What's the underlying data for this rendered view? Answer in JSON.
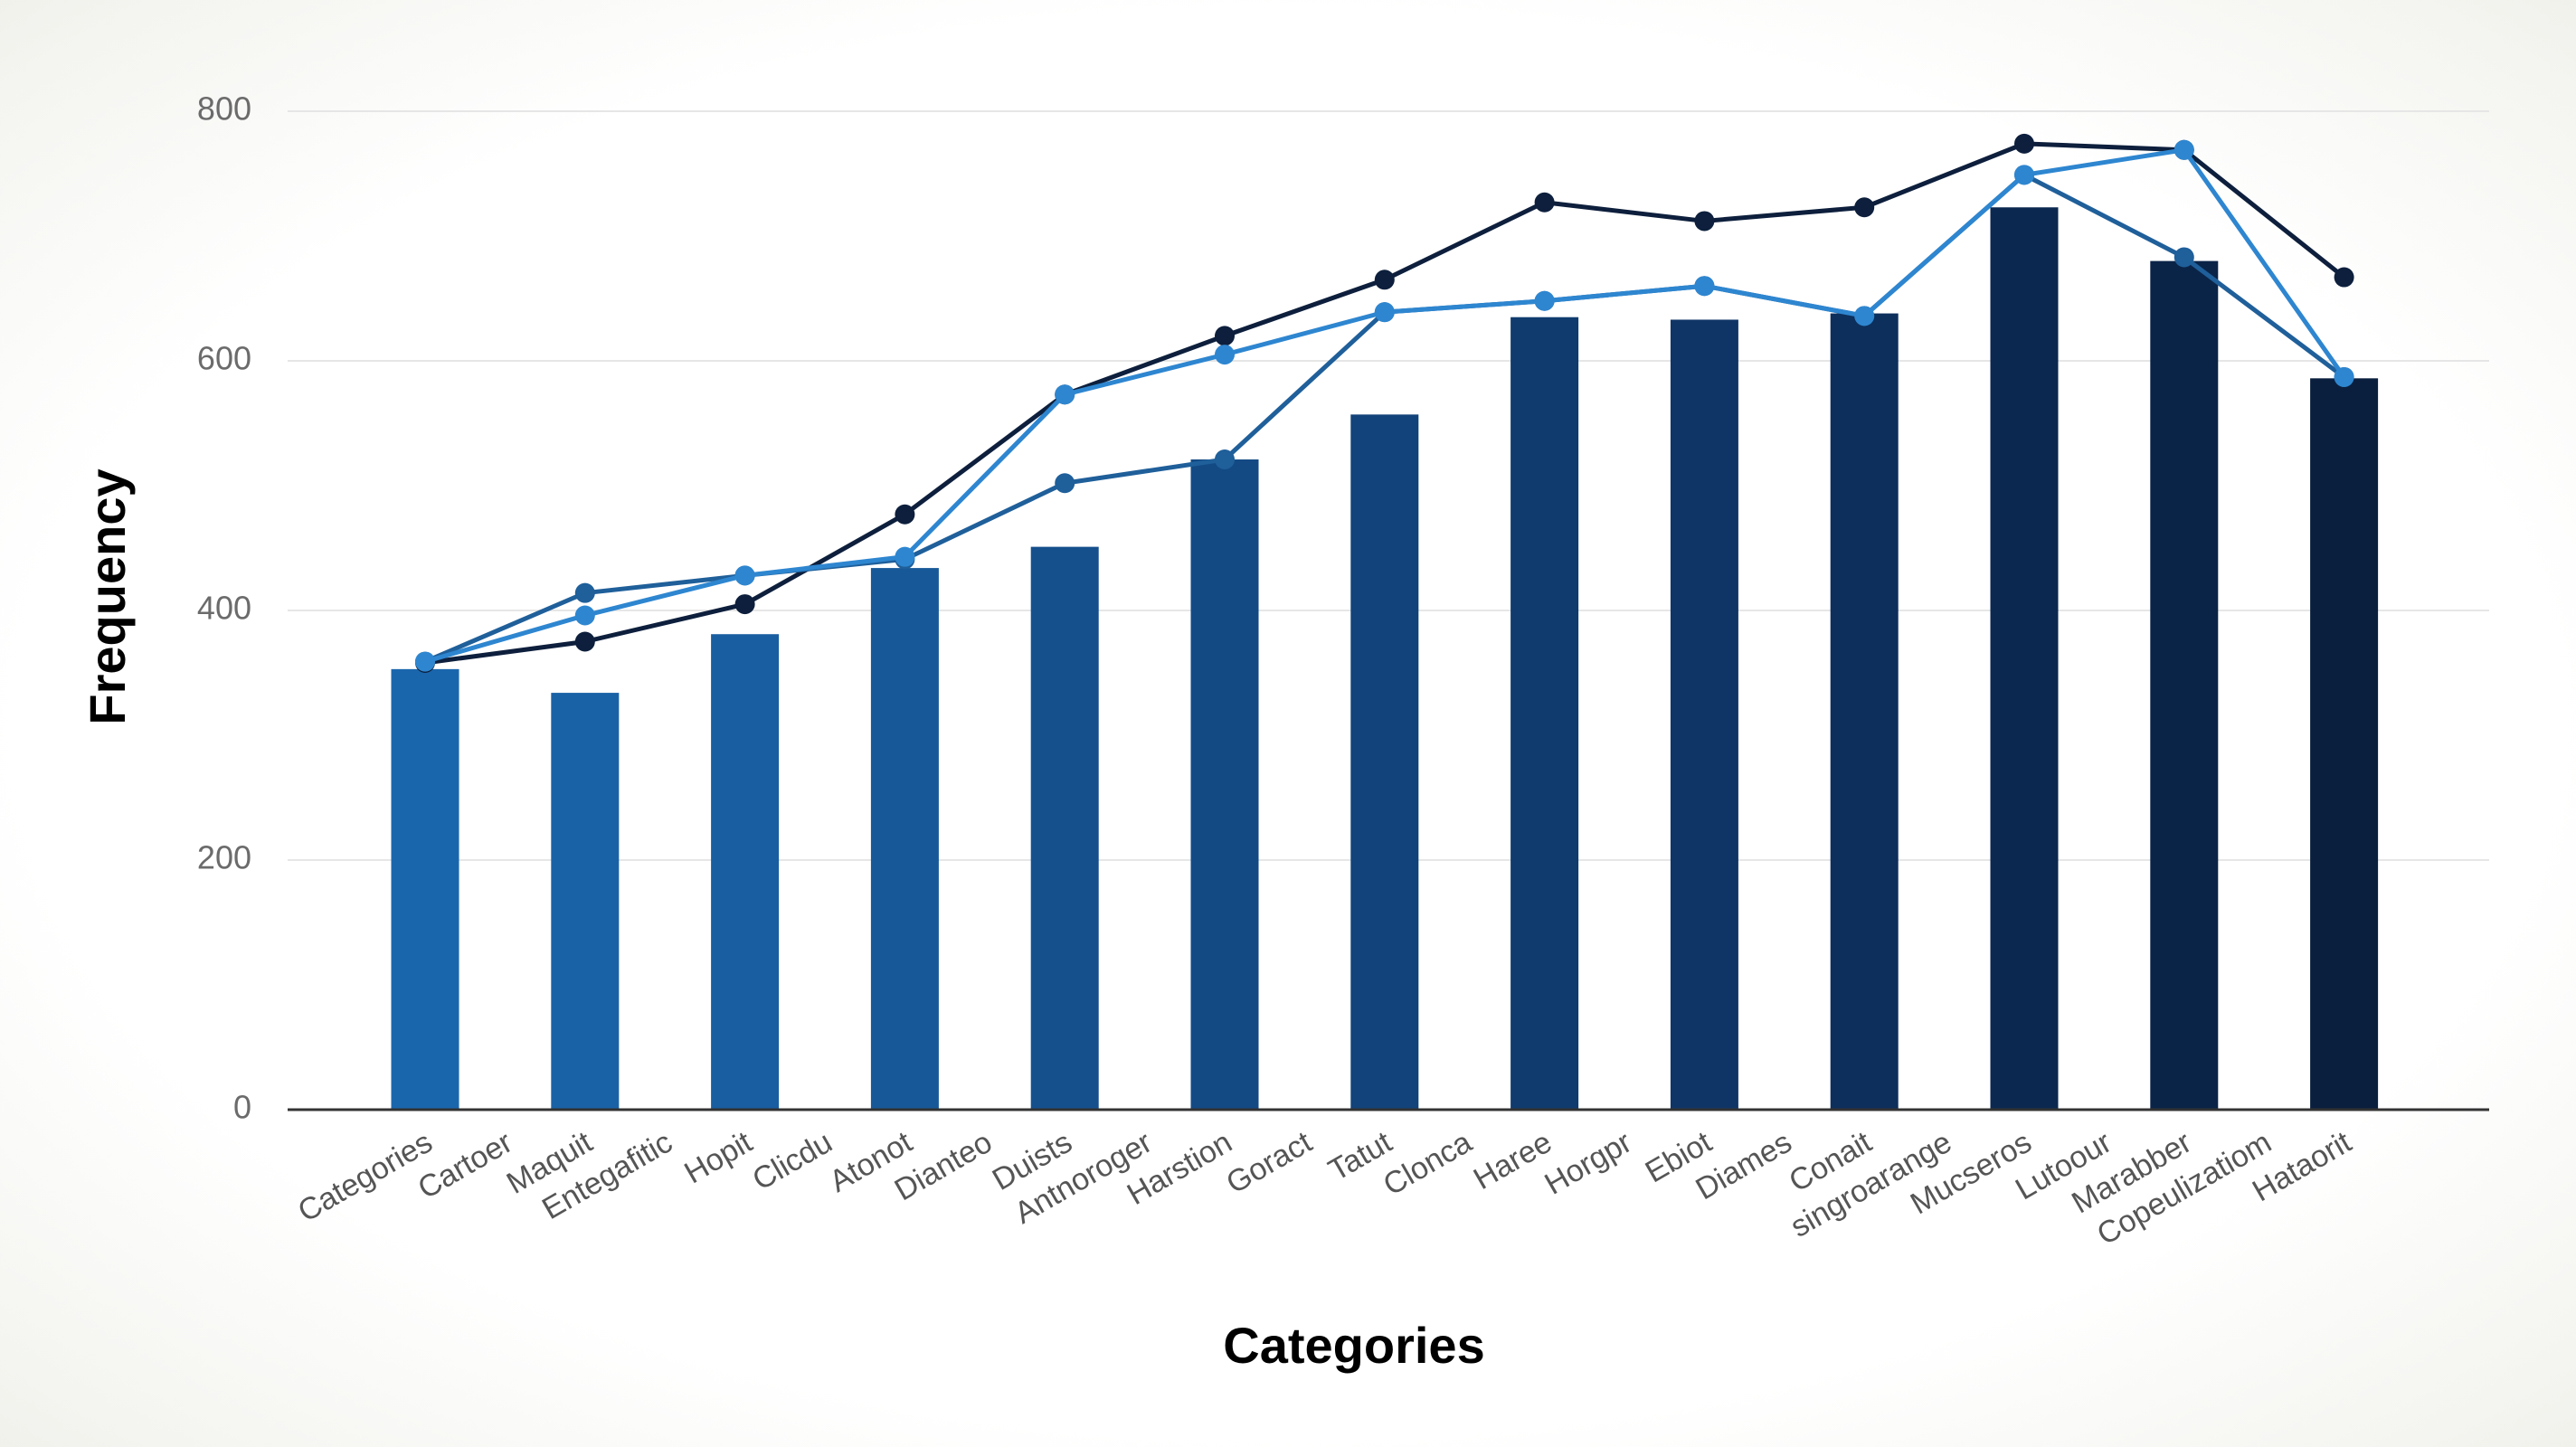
{
  "chart_data": {
    "type": "bar",
    "xlabel": "Categories",
    "ylabel": "Frequency",
    "categories": [
      "Categories",
      "Cartoer",
      "Maquit",
      "Entegafitic",
      "Hopit",
      "Clicdu",
      "Atonot",
      "Dianteo",
      "Duists",
      "Antnoroger",
      "Harstion",
      "Goract",
      "Tatut",
      "Clonca",
      "Haree",
      "Horgpr",
      "Ebiot",
      "Diames",
      "Conait",
      "singroarange",
      "Mucseros",
      "Lutoour",
      "Marabber",
      "Copeulizatiom",
      "Hataorit"
    ],
    "values": [
      353,
      null,
      334,
      null,
      381,
      null,
      434,
      null,
      451,
      null,
      521,
      null,
      557,
      null,
      635,
      null,
      633,
      null,
      638,
      null,
      723,
      null,
      680,
      null,
      586
    ],
    "colors": [
      "#1a66ad",
      null,
      "#1a62a6",
      null,
      "#195ea0",
      null,
      "#175898",
      null,
      "#15508d",
      null,
      "#134a84",
      null,
      "#12437a",
      null,
      "#103b6e",
      null,
      "#0f3566",
      null,
      "#0d2f5c",
      null,
      "#0b2850",
      null,
      "#0a2447",
      null,
      "#0a1f3e"
    ],
    "series": [
      {
        "color": "#0d1f3c",
        "values": [
          358,
          null,
          375,
          null,
          405,
          null,
          477,
          null,
          573,
          null,
          620,
          null,
          665,
          null,
          727,
          null,
          712,
          null,
          723,
          null,
          774,
          null,
          769,
          null,
          667
        ]
      },
      {
        "color": "#1f5f9a",
        "values": [
          359,
          null,
          414,
          null,
          428,
          null,
          441,
          null,
          502,
          null,
          521,
          null,
          639,
          null,
          648,
          null,
          660,
          null,
          636,
          null,
          749,
          null,
          683,
          null,
          587
        ]
      },
      {
        "color": "#2e86d0",
        "values": [
          359,
          null,
          396,
          null,
          428,
          null,
          443,
          null,
          573,
          null,
          605,
          null,
          639,
          null,
          648,
          null,
          660,
          null,
          636,
          null,
          749,
          null,
          769,
          null,
          587
        ]
      }
    ],
    "ylim": [
      0,
      800
    ],
    "yticks": [
      0,
      200,
      400,
      600,
      800
    ],
    "grid": true
  }
}
